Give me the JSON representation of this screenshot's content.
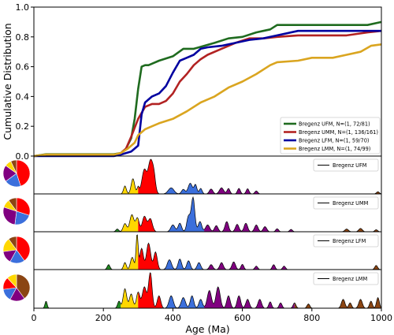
{
  "chart_data": [
    {
      "type": "line",
      "ylabel": "Cumulative Distribution",
      "xlim": [
        0,
        1000
      ],
      "ylim": [
        0.0,
        1.0
      ],
      "y_ticks": [
        "0.0",
        "0.2",
        "0.4",
        "0.6",
        "0.8",
        "1.0"
      ],
      "legend_position": "lower-right",
      "series": [
        {
          "name": "Bregenz UFM, N=(1, 72/81)",
          "color": "#1f6b1f",
          "x": [
            0,
            35,
            230,
            250,
            265,
            280,
            290,
            300,
            310,
            320,
            330,
            340,
            360,
            400,
            430,
            460,
            520,
            560,
            600,
            640,
            660,
            680,
            700,
            760,
            840,
            900,
            960,
            1000
          ],
          "y": [
            0,
            0.012,
            0.012,
            0.02,
            0.05,
            0.12,
            0.25,
            0.45,
            0.6,
            0.61,
            0.61,
            0.62,
            0.64,
            0.67,
            0.72,
            0.72,
            0.76,
            0.79,
            0.8,
            0.83,
            0.84,
            0.85,
            0.88,
            0.88,
            0.88,
            0.88,
            0.88,
            0.9
          ]
        },
        {
          "name": "Bregenz UMM, N=(1, 136/161)",
          "color": "#b22222",
          "x": [
            0,
            35,
            230,
            250,
            265,
            280,
            300,
            320,
            340,
            360,
            380,
            400,
            420,
            440,
            460,
            480,
            500,
            540,
            580,
            620,
            660,
            700,
            760,
            840,
            900,
            960,
            1000
          ],
          "y": [
            0,
            0.007,
            0.007,
            0.02,
            0.05,
            0.13,
            0.25,
            0.33,
            0.35,
            0.35,
            0.37,
            0.42,
            0.5,
            0.55,
            0.61,
            0.65,
            0.68,
            0.72,
            0.76,
            0.79,
            0.79,
            0.8,
            0.81,
            0.81,
            0.81,
            0.83,
            0.84
          ]
        },
        {
          "name": "Bregenz LFM, N=(1, 59/70)",
          "color": "#0000a0",
          "x": [
            0,
            35,
            230,
            250,
            280,
            300,
            310,
            320,
            340,
            360,
            380,
            400,
            420,
            440,
            460,
            480,
            500,
            540,
            580,
            620,
            660,
            700,
            760,
            800,
            840,
            900,
            1000
          ],
          "y": [
            0,
            0,
            0,
            0.01,
            0.03,
            0.07,
            0.28,
            0.36,
            0.4,
            0.42,
            0.47,
            0.56,
            0.64,
            0.66,
            0.68,
            0.72,
            0.73,
            0.74,
            0.76,
            0.78,
            0.79,
            0.81,
            0.84,
            0.84,
            0.84,
            0.84,
            0.84
          ]
        },
        {
          "name": "Bregenz LMM, N=(1, 74/99)",
          "color": "#daa520",
          "x": [
            0,
            35,
            230,
            250,
            270,
            290,
            300,
            320,
            340,
            360,
            400,
            440,
            480,
            520,
            560,
            600,
            640,
            680,
            700,
            760,
            800,
            860,
            900,
            940,
            970,
            1000
          ],
          "y": [
            0,
            0.01,
            0.01,
            0.02,
            0.05,
            0.09,
            0.14,
            0.18,
            0.2,
            0.22,
            0.25,
            0.3,
            0.36,
            0.4,
            0.46,
            0.5,
            0.55,
            0.61,
            0.63,
            0.64,
            0.66,
            0.66,
            0.68,
            0.7,
            0.74,
            0.75
          ]
        }
      ]
    },
    {
      "type": "area",
      "xlabel": "Age (Ma)",
      "xlim": [
        0,
        1000
      ],
      "x_ticks": [
        "0",
        "200",
        "400",
        "600",
        "800",
        "1000"
      ],
      "legend_position": "top-right",
      "age_bands": [
        {
          "from": 0,
          "to": 250,
          "color": "#228b22"
        },
        {
          "from": 250,
          "to": 300,
          "color": "#ffd700"
        },
        {
          "from": 300,
          "to": 370,
          "color": "#ff0000"
        },
        {
          "from": 370,
          "to": 490,
          "color": "#3b6fdc"
        },
        {
          "from": 490,
          "to": 750,
          "color": "#800080"
        },
        {
          "from": 750,
          "to": 1000,
          "color": "#8b4513"
        }
      ],
      "panels": [
        {
          "name": "Bregenz UFM",
          "peaks": [
            [
              262,
              4,
              0.26
            ],
            [
              285,
              5,
              0.5
            ],
            [
              300,
              3,
              0.22
            ],
            [
              318,
              7,
              0.8
            ],
            [
              335,
              6,
              1.0
            ],
            [
              345,
              5,
              0.6
            ],
            [
              395,
              8,
              0.2
            ],
            [
              430,
              5,
              0.15
            ],
            [
              450,
              6,
              0.35
            ],
            [
              465,
              4,
              0.3
            ],
            [
              480,
              4,
              0.18
            ],
            [
              510,
              5,
              0.16
            ],
            [
              540,
              6,
              0.2
            ],
            [
              560,
              4,
              0.18
            ],
            [
              590,
              4,
              0.18
            ],
            [
              615,
              4,
              0.17
            ],
            [
              640,
              4,
              0.1
            ],
            [
              990,
              4,
              0.07
            ]
          ],
          "pie": [
            {
              "value": 0.45,
              "color": "#ff0000"
            },
            {
              "value": 0.2,
              "color": "#3b6fdc"
            },
            {
              "value": 0.2,
              "color": "#800080"
            },
            {
              "value": 0.08,
              "color": "#ffd700"
            },
            {
              "value": 0.07,
              "color": "#8b4513"
            }
          ]
        },
        {
          "name": "Bregenz UMM",
          "peaks": [
            [
              240,
              4,
              0.08
            ],
            [
              262,
              5,
              0.24
            ],
            [
              282,
              6,
              0.5
            ],
            [
              298,
              5,
              0.4
            ],
            [
              318,
              6,
              0.45
            ],
            [
              335,
              6,
              0.38
            ],
            [
              400,
              6,
              0.2
            ],
            [
              420,
              5,
              0.25
            ],
            [
              445,
              5,
              0.45
            ],
            [
              458,
              5,
              1.0
            ],
            [
              478,
              5,
              0.3
            ],
            [
              500,
              6,
              0.2
            ],
            [
              525,
              5,
              0.18
            ],
            [
              555,
              5,
              0.3
            ],
            [
              585,
              5,
              0.22
            ],
            [
              610,
              5,
              0.25
            ],
            [
              640,
              5,
              0.2
            ],
            [
              665,
              5,
              0.15
            ],
            [
              700,
              4,
              0.09
            ],
            [
              740,
              4,
              0.07
            ],
            [
              900,
              5,
              0.08
            ],
            [
              940,
              5,
              0.1
            ],
            [
              985,
              4,
              0.06
            ]
          ],
          "pie": [
            {
              "value": 0.3,
              "color": "#ff0000"
            },
            {
              "value": 0.22,
              "color": "#3b6fdc"
            },
            {
              "value": 0.28,
              "color": "#800080"
            },
            {
              "value": 0.1,
              "color": "#ffd700"
            },
            {
              "value": 0.1,
              "color": "#8b4513"
            }
          ]
        },
        {
          "name": "Bregenz LFM",
          "peaks": [
            [
              215,
              4,
              0.14
            ],
            [
              262,
              4,
              0.2
            ],
            [
              283,
              5,
              0.35
            ],
            [
              297,
              3,
              1.0
            ],
            [
              310,
              5,
              0.6
            ],
            [
              330,
              6,
              0.75
            ],
            [
              350,
              5,
              0.5
            ],
            [
              390,
              6,
              0.28
            ],
            [
              420,
              5,
              0.3
            ],
            [
              445,
              5,
              0.25
            ],
            [
              475,
              5,
              0.2
            ],
            [
              510,
              5,
              0.14
            ],
            [
              540,
              5,
              0.2
            ],
            [
              575,
              5,
              0.22
            ],
            [
              600,
              4,
              0.15
            ],
            [
              640,
              4,
              0.1
            ],
            [
              690,
              4,
              0.14
            ],
            [
              720,
              4,
              0.1
            ],
            [
              985,
              4,
              0.12
            ]
          ],
          "pie": [
            {
              "value": 0.4,
              "color": "#ff0000"
            },
            {
              "value": 0.18,
              "color": "#3b6fdc"
            },
            {
              "value": 0.15,
              "color": "#800080"
            },
            {
              "value": 0.17,
              "color": "#ffd700"
            },
            {
              "value": 0.1,
              "color": "#8b4513"
            }
          ]
        },
        {
          "name": "Bregenz LMM",
          "peaks": [
            [
              35,
              3,
              0.2
            ],
            [
              245,
              4,
              0.2
            ],
            [
              262,
              5,
              0.55
            ],
            [
              280,
              5,
              0.4
            ],
            [
              300,
              5,
              0.45
            ],
            [
              318,
              6,
              0.6
            ],
            [
              335,
              5,
              1.0
            ],
            [
              360,
              5,
              0.35
            ],
            [
              395,
              6,
              0.35
            ],
            [
              430,
              6,
              0.3
            ],
            [
              455,
              5,
              0.35
            ],
            [
              480,
              5,
              0.25
            ],
            [
              505,
              6,
              0.5
            ],
            [
              530,
              6,
              0.6
            ],
            [
              560,
              5,
              0.35
            ],
            [
              590,
              5,
              0.35
            ],
            [
              615,
              5,
              0.25
            ],
            [
              650,
              5,
              0.25
            ],
            [
              680,
              4,
              0.18
            ],
            [
              710,
              4,
              0.15
            ],
            [
              750,
              4,
              0.15
            ],
            [
              790,
              4,
              0.12
            ],
            [
              890,
              5,
              0.25
            ],
            [
              910,
              4,
              0.15
            ],
            [
              940,
              5,
              0.25
            ],
            [
              970,
              4,
              0.2
            ],
            [
              990,
              4,
              0.3
            ]
          ],
          "pie": [
            {
              "value": 0.4,
              "color": "#8b4513"
            },
            {
              "value": 0.18,
              "color": "#800080"
            },
            {
              "value": 0.15,
              "color": "#3b6fdc"
            },
            {
              "value": 0.15,
              "color": "#ff0000"
            },
            {
              "value": 0.12,
              "color": "#ffd700"
            }
          ]
        }
      ]
    }
  ]
}
